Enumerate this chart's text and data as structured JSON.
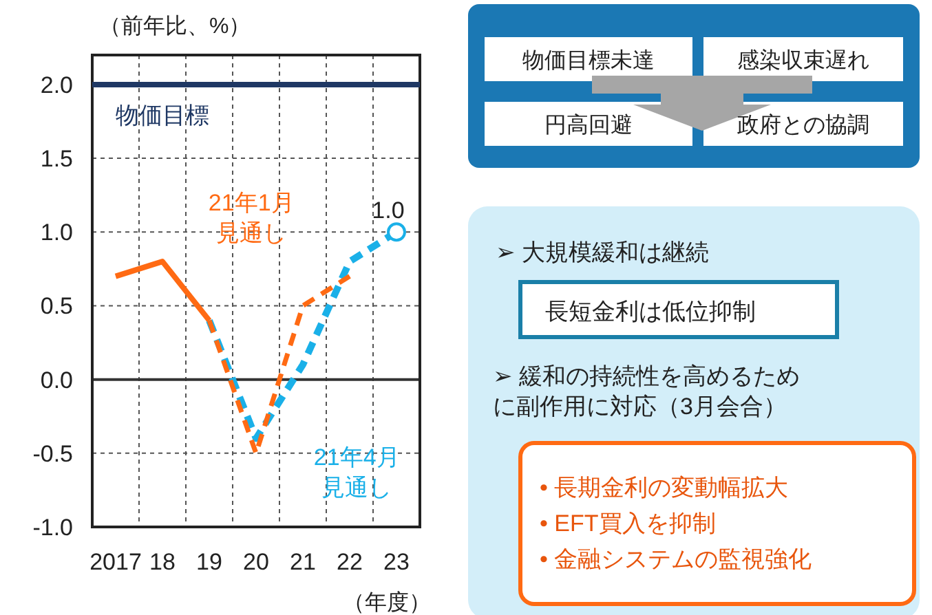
{
  "chart_data": [
    {
      "type": "line",
      "ylabel": "（前年比、%）",
      "xlabel": "（年度）",
      "categories": [
        "2017",
        "18",
        "19",
        "20",
        "21",
        "22",
        "23"
      ],
      "ylim": [
        -1.0,
        2.2
      ],
      "yticks": [
        {
          "value": -1.0,
          "label": "-1.0"
        },
        {
          "value": -0.5,
          "label": "-0.5"
        },
        {
          "value": 0,
          "label": "0.0"
        },
        {
          "value": 0.5,
          "label": "0.5"
        },
        {
          "value": 1.0,
          "label": "1.0"
        },
        {
          "value": 1.5,
          "label": "1.5"
        },
        {
          "value": 2.0,
          "label": "2.0"
        }
      ],
      "grid": true,
      "series": [
        {
          "color": "#ff6a13",
          "line_style": "solid",
          "values": [
            0.7,
            0.8,
            0.4,
            null,
            null,
            null,
            null
          ]
        },
        {
          "color": "#1ab0e8",
          "line_style": "dashed",
          "name": "21年4月見通し",
          "values": [
            null,
            null,
            0.4,
            -0.4,
            0.1,
            0.8,
            1.0
          ]
        },
        {
          "color": "#ff6a13",
          "line_style": "dashed",
          "name": "21年1月見通し",
          "values": [
            null,
            null,
            0.4,
            -0.5,
            0.5,
            0.7,
            null
          ]
        },
        {
          "type": "scatter",
          "marker": "circle",
          "color": "#1ab0e8",
          "values": [
            null,
            null,
            null,
            null,
            null,
            null,
            1.0
          ]
        }
      ],
      "ref_lines": [
        {
          "axis": "y",
          "value": 2.0,
          "label": "物価目標",
          "color": "#1f3864"
        }
      ],
      "annotations": [
        {
          "text": "1.0",
          "x": "23",
          "y": 1.0
        }
      ]
    },
    {
      "type": "other",
      "annotations": [
        "物価目標未達",
        "感染収束遅れ",
        "円高回避",
        "政府との協調",
        "➢ 大規模緩和は継続",
        "長短金利は低位抑制",
        "➢ 緩和の持続性を高めるために副作用に対応（3月会合）",
        "• 長期金利の変動幅拡大",
        "• EFT買入を抑制",
        "• 金融システムの監視強化"
      ]
    }
  ]
}
